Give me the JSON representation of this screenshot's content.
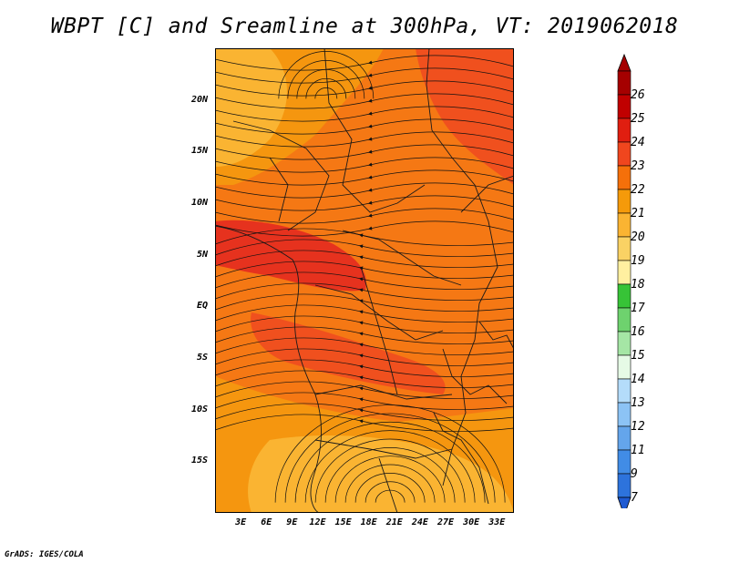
{
  "title": "WBPT [C] and Sreamline at 300hPa, VT: 2019062018",
  "footer": "GrADS: IGES/COLA",
  "map": {
    "lon_range": [
      0,
      35
    ],
    "lat_range": [
      -20,
      25
    ],
    "lat_ticks": [
      {
        "lat": 20,
        "label": "20N"
      },
      {
        "lat": 15,
        "label": "15N"
      },
      {
        "lat": 10,
        "label": "10N"
      },
      {
        "lat": 5,
        "label": "5N"
      },
      {
        "lat": 0,
        "label": "EQ"
      },
      {
        "lat": -5,
        "label": "5S"
      },
      {
        "lat": -10,
        "label": "10S"
      },
      {
        "lat": -15,
        "label": "15S"
      }
    ],
    "lon_ticks": [
      {
        "lon": 3,
        "label": "3E"
      },
      {
        "lon": 6,
        "label": "6E"
      },
      {
        "lon": 9,
        "label": "9E"
      },
      {
        "lon": 12,
        "label": "12E"
      },
      {
        "lon": 15,
        "label": "15E"
      },
      {
        "lon": 18,
        "label": "18E"
      },
      {
        "lon": 21,
        "label": "21E"
      },
      {
        "lon": 24,
        "label": "24E"
      },
      {
        "lon": 27,
        "label": "27E"
      },
      {
        "lon": 30,
        "label": "30E"
      },
      {
        "lon": 33,
        "label": "33E"
      }
    ]
  },
  "colorbar": {
    "levels": [
      {
        "label": "26",
        "color": "#a50000"
      },
      {
        "label": "25",
        "color": "#c00000"
      },
      {
        "label": "24",
        "color": "#e01e10"
      },
      {
        "label": "23",
        "color": "#f0461e"
      },
      {
        "label": "22",
        "color": "#f5700a"
      },
      {
        "label": "21",
        "color": "#f59a0a"
      },
      {
        "label": "20",
        "color": "#fab432"
      },
      {
        "label": "19",
        "color": "#fad264"
      },
      {
        "label": "18",
        "color": "#fff0a0"
      },
      {
        "label": "17",
        "color": "#37c337"
      },
      {
        "label": "16",
        "color": "#6ed26e"
      },
      {
        "label": "15",
        "color": "#a5e6a5"
      },
      {
        "label": "14",
        "color": "#e6fae6"
      },
      {
        "label": "13",
        "color": "#b4dcfa"
      },
      {
        "label": "12",
        "color": "#8cc3f5"
      },
      {
        "label": "11",
        "color": "#64a5eb"
      },
      {
        "label": "9",
        "color": "#418ce6"
      },
      {
        "label": "7",
        "color": "#2d73dc"
      }
    ],
    "bottom_color": "#1e5ad2"
  },
  "field_colors": {
    "warm_23": "#f0501e",
    "warm_22": "#f57814",
    "warm_21": "#f5960f",
    "warm_20": "#fab432",
    "hot_24": "#e6321e"
  }
}
